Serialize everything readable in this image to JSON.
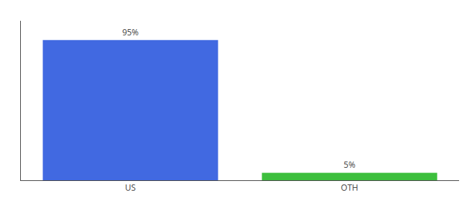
{
  "chart_data": {
    "type": "bar",
    "categories": [
      "US",
      "OTH"
    ],
    "values": [
      95,
      5
    ],
    "value_labels": [
      "95%",
      "5%"
    ],
    "colors": [
      "#4169e1",
      "#3dbf3d"
    ],
    "ylim": [
      0,
      108
    ],
    "yticks": [],
    "grid": false,
    "data_labels": true,
    "tick_labels": "x"
  }
}
